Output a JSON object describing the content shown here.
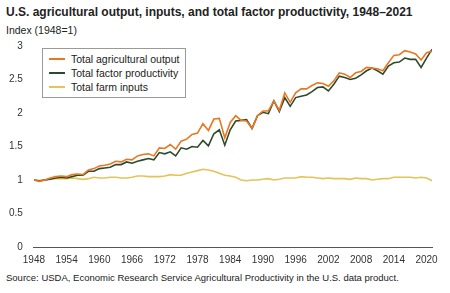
{
  "chart_data": {
    "type": "line",
    "title": "U.S. agricultural output, inputs, and total factor productivity, 1948–2021",
    "y_label": "Index (1948=1)",
    "source": "Source: USDA, Economic Research Service Agricultural Productivity in the U.S. data product.",
    "legend": "top-left",
    "grid": false,
    "xlim": [
      1948,
      2021
    ],
    "xticks": [
      1948,
      1954,
      1960,
      1966,
      1972,
      1978,
      1984,
      1990,
      1996,
      2002,
      2008,
      2014,
      2020
    ],
    "ylim": [
      0,
      3
    ],
    "yticks": [
      0,
      0.5,
      1,
      1.5,
      2,
      2.5,
      3
    ],
    "x": [
      1948,
      1949,
      1950,
      1951,
      1952,
      1953,
      1954,
      1955,
      1956,
      1957,
      1958,
      1959,
      1960,
      1961,
      1962,
      1963,
      1964,
      1965,
      1966,
      1967,
      1968,
      1969,
      1970,
      1971,
      1972,
      1973,
      1974,
      1975,
      1976,
      1977,
      1978,
      1979,
      1980,
      1981,
      1982,
      1983,
      1984,
      1985,
      1986,
      1987,
      1988,
      1989,
      1990,
      1991,
      1992,
      1993,
      1994,
      1995,
      1996,
      1997,
      1998,
      1999,
      2000,
      2001,
      2002,
      2003,
      2004,
      2005,
      2006,
      2007,
      2008,
      2009,
      2010,
      2011,
      2012,
      2013,
      2014,
      2015,
      2016,
      2017,
      2018,
      2019,
      2020,
      2021
    ],
    "series": [
      {
        "name": "Total agricultural output",
        "color": "#e87722",
        "values": [
          1.0,
          0.98,
          1.0,
          1.03,
          1.05,
          1.06,
          1.05,
          1.08,
          1.09,
          1.08,
          1.15,
          1.17,
          1.21,
          1.22,
          1.24,
          1.28,
          1.27,
          1.31,
          1.3,
          1.36,
          1.38,
          1.39,
          1.36,
          1.48,
          1.47,
          1.53,
          1.46,
          1.58,
          1.61,
          1.68,
          1.7,
          1.84,
          1.74,
          1.91,
          1.92,
          1.63,
          1.86,
          1.96,
          1.89,
          1.88,
          1.77,
          1.96,
          2.03,
          2.03,
          2.18,
          2.04,
          2.3,
          2.16,
          2.3,
          2.36,
          2.36,
          2.41,
          2.45,
          2.44,
          2.4,
          2.48,
          2.6,
          2.58,
          2.53,
          2.6,
          2.62,
          2.68,
          2.67,
          2.66,
          2.63,
          2.75,
          2.86,
          2.87,
          2.93,
          2.91,
          2.88,
          2.79,
          2.9,
          2.92
        ]
      },
      {
        "name": "Total factor productivity",
        "color": "#2e4a2c",
        "values": [
          1.0,
          0.99,
          1.0,
          1.01,
          1.03,
          1.04,
          1.03,
          1.05,
          1.07,
          1.07,
          1.13,
          1.13,
          1.17,
          1.18,
          1.19,
          1.23,
          1.23,
          1.27,
          1.25,
          1.28,
          1.3,
          1.32,
          1.3,
          1.41,
          1.39,
          1.42,
          1.36,
          1.48,
          1.46,
          1.5,
          1.49,
          1.59,
          1.51,
          1.69,
          1.75,
          1.52,
          1.75,
          1.88,
          1.89,
          1.9,
          1.77,
          1.96,
          2.01,
          1.99,
          2.18,
          2.02,
          2.23,
          2.1,
          2.23,
          2.25,
          2.27,
          2.32,
          2.38,
          2.39,
          2.33,
          2.43,
          2.55,
          2.53,
          2.5,
          2.52,
          2.57,
          2.63,
          2.67,
          2.63,
          2.58,
          2.7,
          2.75,
          2.76,
          2.82,
          2.8,
          2.8,
          2.68,
          2.82,
          2.95
        ]
      },
      {
        "name": "Total farm inputs",
        "color": "#e3c35a",
        "values": [
          1.0,
          0.99,
          1.0,
          1.02,
          1.02,
          1.02,
          1.02,
          1.03,
          1.02,
          1.01,
          1.02,
          1.04,
          1.03,
          1.03,
          1.04,
          1.04,
          1.03,
          1.03,
          1.04,
          1.06,
          1.06,
          1.05,
          1.05,
          1.05,
          1.06,
          1.08,
          1.07,
          1.07,
          1.1,
          1.12,
          1.14,
          1.16,
          1.15,
          1.13,
          1.1,
          1.07,
          1.06,
          1.04,
          1.0,
          0.99,
          1.0,
          1.0,
          1.01,
          1.02,
          1.0,
          1.01,
          1.03,
          1.03,
          1.03,
          1.05,
          1.04,
          1.04,
          1.03,
          1.02,
          1.03,
          1.02,
          1.02,
          1.02,
          1.01,
          1.03,
          1.02,
          1.02,
          1.0,
          1.01,
          1.02,
          1.02,
          1.04,
          1.04,
          1.04,
          1.04,
          1.03,
          1.04,
          1.03,
          0.99
        ]
      }
    ]
  }
}
